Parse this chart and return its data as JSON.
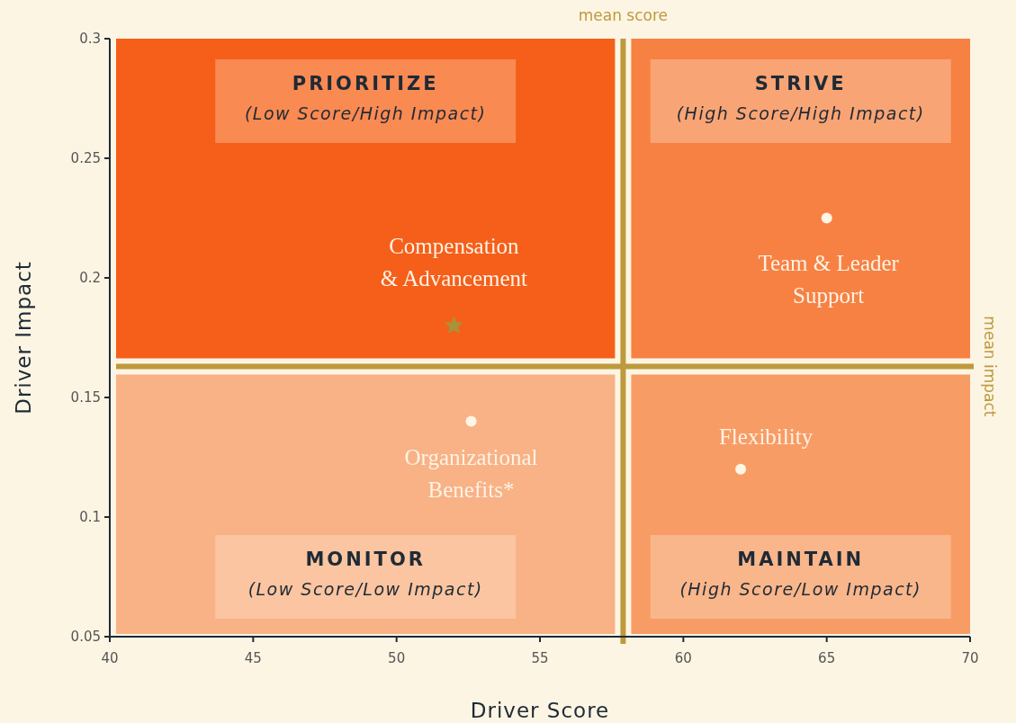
{
  "chart_data": {
    "type": "scatter",
    "xlabel": "Driver Score",
    "ylabel": "Driver Impact",
    "xlim": [
      40,
      70
    ],
    "xticks": [
      40,
      45,
      50,
      55,
      60,
      65,
      70
    ],
    "ylim": [
      0.05,
      0.3
    ],
    "yticks": [
      0.05,
      0.1,
      0.15,
      0.2,
      0.25,
      0.3
    ],
    "grid": false,
    "series": [
      {
        "name": "Compensation & Advancement",
        "color": "#a9923a",
        "marker": "star",
        "x": [
          52
        ],
        "values": [
          0.18
        ]
      },
      {
        "name": "Team & Leader Support",
        "color": "#fff5e6",
        "marker": "circle",
        "x": [
          65
        ],
        "values": [
          0.225
        ]
      },
      {
        "name": "Organizational Benefits*",
        "color": "#fff5e6",
        "marker": "circle",
        "x": [
          52.6
        ],
        "values": [
          0.14
        ]
      },
      {
        "name": "Flexibility",
        "color": "#fff5e6",
        "marker": "circle",
        "x": [
          62
        ],
        "values": [
          0.12
        ]
      }
    ],
    "ref_lines": [
      {
        "axis": "x",
        "value": 57.9,
        "label": "mean score",
        "color": "#bd9a3e"
      },
      {
        "axis": "y",
        "value": 0.163,
        "label": "mean impact",
        "color": "#bd9a3e"
      }
    ],
    "annotations": [
      "PRIORITIZE",
      "(Low Score/High Impact)",
      "STRIVE",
      "(High Score/High Impact)",
      "MONITOR",
      "(Low Score/Low Impact)",
      "MAINTAIN",
      "(High Score/Low Impact)"
    ]
  }
}
